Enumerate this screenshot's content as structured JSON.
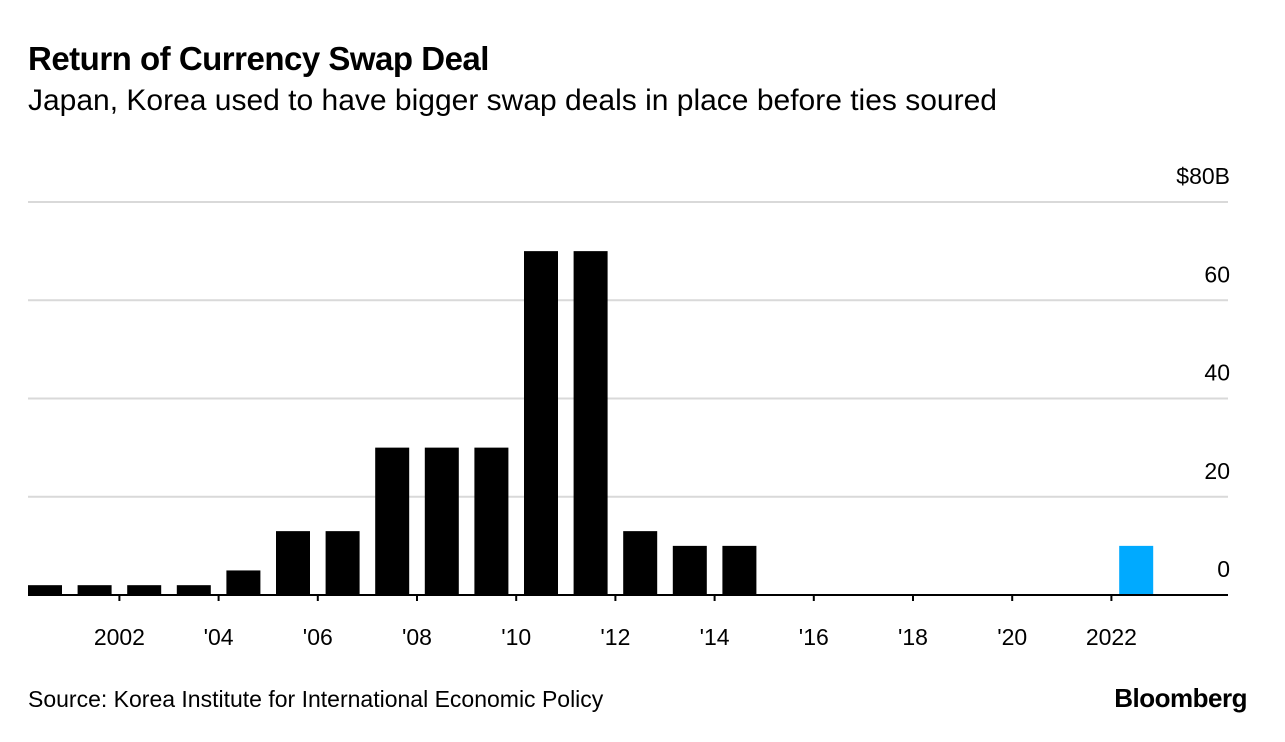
{
  "header": {
    "title": "Return of Currency Swap Deal",
    "subtitle": "Japan, Korea used to have bigger swap deals in place before ties soured"
  },
  "footer": {
    "source": "Source: Korea Institute for International Economic Policy",
    "logo": "Bloomberg"
  },
  "colors": {
    "bar": "#000000",
    "highlight": "#00aaff",
    "grid": "#d9d9d9",
    "axis": "#000000"
  },
  "chart_data": {
    "type": "bar",
    "title": "Return of Currency Swap Deal",
    "subtitle": "Japan, Korea used to have bigger swap deals in place before ties soured",
    "xlabel": "",
    "ylabel": "",
    "unit": "$ billions",
    "ylim": [
      0,
      80
    ],
    "y_ticks": [
      {
        "value": 80,
        "label": "$80B"
      },
      {
        "value": 60,
        "label": "60"
      },
      {
        "value": 40,
        "label": "40"
      },
      {
        "value": 20,
        "label": "20"
      },
      {
        "value": 0,
        "label": "0"
      }
    ],
    "x_ticks": [
      {
        "year": 2002,
        "label": "2002"
      },
      {
        "year": 2004,
        "label": "'04"
      },
      {
        "year": 2006,
        "label": "'06"
      },
      {
        "year": 2008,
        "label": "'08"
      },
      {
        "year": 2010,
        "label": "'10"
      },
      {
        "year": 2012,
        "label": "'12"
      },
      {
        "year": 2014,
        "label": "'14"
      },
      {
        "year": 2016,
        "label": "'16"
      },
      {
        "year": 2018,
        "label": "'18"
      },
      {
        "year": 2020,
        "label": "'20"
      },
      {
        "year": 2022,
        "label": "2022"
      }
    ],
    "categories": [
      2001,
      2002,
      2003,
      2004,
      2005,
      2006,
      2007,
      2008,
      2009,
      2010,
      2011,
      2012,
      2013,
      2014,
      2015,
      2016,
      2017,
      2018,
      2019,
      2020,
      2021,
      2022,
      2023
    ],
    "values": [
      2,
      2,
      2,
      2,
      5,
      13,
      13,
      30,
      30,
      30,
      70,
      70,
      13,
      10,
      10,
      0,
      0,
      0,
      0,
      0,
      0,
      0,
      10
    ],
    "highlight": [
      2023
    ],
    "grid": true,
    "y_axis_position": "right"
  }
}
